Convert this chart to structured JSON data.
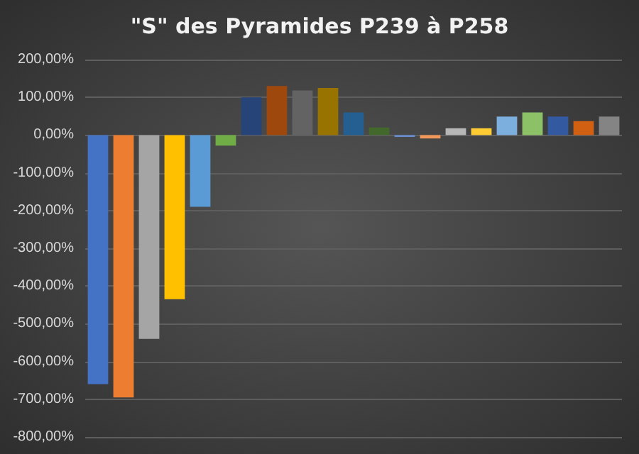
{
  "chart_data": {
    "type": "bar",
    "title": "\"S\" des Pyramides P239 à P258",
    "categories": [
      null,
      null,
      null,
      null,
      null,
      null,
      null,
      null,
      null,
      null,
      null,
      null,
      null,
      null,
      null,
      null,
      null,
      null,
      null,
      null,
      null
    ],
    "values": [
      -660,
      -695,
      -540,
      -435,
      -190,
      -28,
      100,
      130,
      118,
      125,
      60,
      20,
      -5,
      -9,
      18,
      18,
      49,
      60,
      49,
      37,
      49
    ],
    "colors": [
      "#4472c4",
      "#ed7d31",
      "#a5a5a5",
      "#ffc000",
      "#5b9bd5",
      "#70ad47",
      "#264478",
      "#9e480e",
      "#636363",
      "#997300",
      "#255e91",
      "#43682b",
      "#698ed0",
      "#f1975a",
      "#b7b7b7",
      "#ffcd33",
      "#7cafdd",
      "#8cc168",
      "#335aa1",
      "#d26012",
      "#848484"
    ],
    "ylim": [
      -800,
      200
    ],
    "yticks": [
      {
        "value": -800,
        "label": "-800,00%"
      },
      {
        "value": -700,
        "label": "-700,00%"
      },
      {
        "value": -600,
        "label": "-600,00%"
      },
      {
        "value": -500,
        "label": "-500,00%"
      },
      {
        "value": -400,
        "label": "-400,00%"
      },
      {
        "value": -300,
        "label": "-300,00%"
      },
      {
        "value": -200,
        "label": "-200,00%"
      },
      {
        "value": -100,
        "label": "-100,00%"
      },
      {
        "value": 0,
        "label": "0,00%"
      },
      {
        "value": 100,
        "label": "100,00%"
      },
      {
        "value": 200,
        "label": "200,00%"
      }
    ],
    "grid": true
  }
}
